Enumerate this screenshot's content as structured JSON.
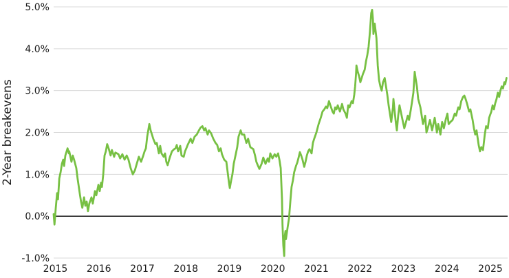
{
  "chart_data": {
    "type": "line",
    "title": "",
    "xlabel": "",
    "ylabel": "2-Year breakevens",
    "ylim": [
      -1.0,
      5.0
    ],
    "xlim": [
      2014.95,
      2025.45
    ],
    "grid": "horizontal",
    "legend": "none",
    "line_color": "#77c043",
    "grid_color": "#d9d9d9",
    "zero_line_color": "#000000",
    "text_color": "#1a1a1a",
    "y_ticks": [
      {
        "value": 5.0,
        "label": "5.0%"
      },
      {
        "value": 4.0,
        "label": "4.0%"
      },
      {
        "value": 3.0,
        "label": "3.0%"
      },
      {
        "value": 2.0,
        "label": "2.0%"
      },
      {
        "value": 1.0,
        "label": "1.0%"
      },
      {
        "value": 0.0,
        "label": "0.0%"
      },
      {
        "value": -1.0,
        "label": "-1.0%"
      }
    ],
    "y_gridline_values": [
      5.0,
      4.0,
      3.0,
      2.0,
      1.0,
      -1.0
    ],
    "zero_line_value": 0.0,
    "x_ticks": [
      {
        "value": 2015,
        "label": "2015"
      },
      {
        "value": 2016,
        "label": "2016"
      },
      {
        "value": 2017,
        "label": "2017"
      },
      {
        "value": 2018,
        "label": "2018"
      },
      {
        "value": 2019,
        "label": "2019"
      },
      {
        "value": 2020,
        "label": "2020"
      },
      {
        "value": 2021,
        "label": "2021"
      },
      {
        "value": 2022,
        "label": "2022"
      },
      {
        "value": 2023,
        "label": "2023"
      },
      {
        "value": 2024,
        "label": "2024"
      },
      {
        "value": 2025,
        "label": "2025"
      }
    ],
    "series": [
      {
        "name": "2-Year breakevens",
        "x": [
          2014.96,
          2014.98,
          2015.01,
          2015.04,
          2015.06,
          2015.09,
          2015.12,
          2015.15,
          2015.18,
          2015.2,
          2015.23,
          2015.28,
          2015.31,
          2015.32,
          2015.37,
          2015.4,
          2015.43,
          2015.48,
          2015.51,
          2015.56,
          2015.59,
          2015.62,
          2015.66,
          2015.69,
          2015.72,
          2015.75,
          2015.78,
          2015.83,
          2015.86,
          2015.91,
          2015.94,
          2015.99,
          2016.02,
          2016.05,
          2016.07,
          2016.1,
          2016.13,
          2016.16,
          2016.19,
          2016.23,
          2016.27,
          2016.3,
          2016.35,
          2016.38,
          2016.45,
          2016.49,
          2016.54,
          2016.59,
          2016.64,
          2016.68,
          2016.73,
          2016.78,
          2016.83,
          2016.87,
          2016.92,
          2016.97,
          2017.02,
          2017.05,
          2017.08,
          2017.11,
          2017.16,
          2017.19,
          2017.22,
          2017.25,
          2017.3,
          2017.33,
          2017.38,
          2017.41,
          2017.44,
          2017.49,
          2017.52,
          2017.55,
          2017.58,
          2017.63,
          2017.68,
          2017.73,
          2017.76,
          2017.79,
          2017.82,
          2017.87,
          2017.9,
          2017.95,
          2017.98,
          2018.01,
          2018.04,
          2018.11,
          2018.15,
          2018.2,
          2018.25,
          2018.3,
          2018.34,
          2018.38,
          2018.42,
          2018.45,
          2018.5,
          2018.53,
          2018.58,
          2018.63,
          2018.68,
          2018.72,
          2018.76,
          2018.8,
          2018.83,
          2018.88,
          2018.93,
          2018.96,
          2018.99,
          2019.01,
          2019.04,
          2019.07,
          2019.1,
          2019.15,
          2019.18,
          2019.21,
          2019.26,
          2019.29,
          2019.34,
          2019.39,
          2019.43,
          2019.48,
          2019.55,
          2019.59,
          2019.62,
          2019.66,
          2019.69,
          2019.74,
          2019.78,
          2019.83,
          2019.88,
          2019.91,
          2019.94,
          2019.99,
          2020.04,
          2020.08,
          2020.12,
          2020.15,
          2020.18,
          2020.21,
          2020.22,
          2020.24,
          2020.26,
          2020.27,
          2020.29,
          2020.3,
          2020.34,
          2020.37,
          2020.4,
          2020.43,
          2020.46,
          2020.49,
          2020.53,
          2020.56,
          2020.59,
          2020.62,
          2020.65,
          2020.68,
          2020.72,
          2020.75,
          2020.78,
          2020.81,
          2020.84,
          2020.89,
          2020.92,
          2020.95,
          2021.0,
          2021.05,
          2021.1,
          2021.14,
          2021.18,
          2021.22,
          2021.25,
          2021.29,
          2021.33,
          2021.37,
          2021.4,
          2021.43,
          2021.46,
          2021.49,
          2021.54,
          2021.59,
          2021.62,
          2021.67,
          2021.7,
          2021.73,
          2021.76,
          2021.81,
          2021.84,
          2021.87,
          2021.89,
          2021.91,
          2021.92,
          2021.95,
          2021.98,
          2022.01,
          2022.04,
          2022.07,
          2022.11,
          2022.14,
          2022.17,
          2022.2,
          2022.23,
          2022.26,
          2022.28,
          2022.3,
          2022.31,
          2022.34,
          2022.38,
          2022.41,
          2022.44,
          2022.47,
          2022.5,
          2022.53,
          2022.57,
          2022.6,
          2022.63,
          2022.66,
          2022.69,
          2022.72,
          2022.76,
          2022.77,
          2022.8,
          2022.83,
          2022.85,
          2022.88,
          2022.91,
          2022.94,
          2022.98,
          2023.02,
          2023.06,
          2023.1,
          2023.13,
          2023.17,
          2023.2,
          2023.23,
          2023.26,
          2023.28,
          2023.31,
          2023.34,
          2023.39,
          2023.42,
          2023.45,
          2023.5,
          2023.53,
          2023.56,
          2023.61,
          2023.66,
          2023.69,
          2023.72,
          2023.77,
          2023.8,
          2023.85,
          2023.89,
          2023.93,
          2023.97,
          2024.01,
          2024.04,
          2024.08,
          2024.13,
          2024.18,
          2024.21,
          2024.26,
          2024.29,
          2024.33,
          2024.37,
          2024.4,
          2024.43,
          2024.46,
          2024.51,
          2024.54,
          2024.59,
          2024.62,
          2024.65,
          2024.68,
          2024.73,
          2024.76,
          2024.79,
          2024.83,
          2024.87,
          2024.9,
          2024.94,
          2024.97,
          2025.02,
          2025.05,
          2025.08,
          2025.11,
          2025.14,
          2025.17,
          2025.2,
          2025.23,
          2025.26,
          2025.29,
          2025.32,
          2025.34,
          2025.37
        ],
        "y": [
          0.05,
          -0.2,
          0.2,
          0.55,
          0.4,
          0.9,
          1.05,
          1.25,
          1.35,
          1.2,
          1.45,
          1.62,
          1.5,
          1.55,
          1.3,
          1.45,
          1.35,
          1.15,
          0.9,
          0.55,
          0.35,
          0.2,
          0.45,
          0.25,
          0.35,
          0.12,
          0.3,
          0.45,
          0.3,
          0.6,
          0.5,
          0.75,
          0.6,
          0.8,
          0.7,
          1.0,
          1.45,
          1.55,
          1.72,
          1.6,
          1.45,
          1.58,
          1.42,
          1.52,
          1.48,
          1.38,
          1.48,
          1.35,
          1.45,
          1.35,
          1.15,
          1.0,
          1.1,
          1.25,
          1.42,
          1.3,
          1.45,
          1.55,
          1.62,
          1.9,
          2.2,
          2.05,
          1.95,
          1.85,
          1.72,
          1.75,
          1.5,
          1.68,
          1.5,
          1.42,
          1.5,
          1.3,
          1.22,
          1.4,
          1.55,
          1.6,
          1.62,
          1.7,
          1.55,
          1.68,
          1.45,
          1.42,
          1.55,
          1.62,
          1.7,
          1.85,
          1.75,
          1.9,
          1.95,
          2.05,
          2.12,
          2.15,
          2.05,
          2.1,
          1.95,
          2.05,
          1.98,
          1.85,
          1.75,
          1.7,
          1.55,
          1.62,
          1.48,
          1.35,
          1.3,
          1.05,
          0.8,
          0.67,
          0.85,
          1.0,
          1.25,
          1.5,
          1.65,
          1.9,
          2.05,
          1.95,
          1.95,
          1.75,
          1.85,
          1.65,
          1.6,
          1.45,
          1.3,
          1.2,
          1.13,
          1.25,
          1.4,
          1.25,
          1.38,
          1.3,
          1.5,
          1.38,
          1.48,
          1.42,
          1.5,
          1.35,
          1.15,
          0.4,
          -0.2,
          -0.7,
          -0.95,
          -0.5,
          -0.35,
          -0.55,
          -0.25,
          -0.05,
          0.35,
          0.7,
          0.85,
          1.05,
          1.2,
          1.28,
          1.4,
          1.53,
          1.45,
          1.35,
          1.18,
          1.3,
          1.45,
          1.55,
          1.6,
          1.5,
          1.75,
          1.85,
          2.0,
          2.2,
          2.35,
          2.5,
          2.55,
          2.62,
          2.58,
          2.75,
          2.62,
          2.5,
          2.45,
          2.6,
          2.55,
          2.65,
          2.5,
          2.68,
          2.55,
          2.45,
          2.35,
          2.65,
          2.6,
          2.75,
          2.7,
          2.9,
          3.1,
          3.4,
          3.6,
          3.45,
          3.35,
          3.2,
          3.3,
          3.4,
          3.5,
          3.7,
          3.85,
          4.05,
          4.4,
          4.85,
          4.93,
          4.7,
          4.35,
          4.6,
          4.25,
          3.6,
          3.25,
          3.1,
          3.0,
          3.2,
          3.3,
          3.1,
          2.9,
          2.65,
          2.45,
          2.25,
          2.6,
          2.8,
          2.5,
          2.2,
          2.05,
          2.4,
          2.65,
          2.5,
          2.3,
          2.1,
          2.25,
          2.4,
          2.3,
          2.55,
          2.75,
          2.95,
          3.45,
          3.3,
          3.1,
          2.8,
          2.6,
          2.4,
          2.2,
          2.4,
          2.0,
          2.1,
          2.3,
          2.05,
          2.2,
          2.35,
          2.0,
          2.2,
          1.95,
          2.25,
          2.1,
          2.3,
          2.45,
          2.2,
          2.25,
          2.3,
          2.45,
          2.4,
          2.6,
          2.55,
          2.75,
          2.85,
          2.88,
          2.8,
          2.7,
          2.5,
          2.55,
          2.3,
          2.1,
          1.95,
          2.05,
          1.7,
          1.55,
          1.65,
          1.58,
          1.95,
          2.15,
          2.1,
          2.35,
          2.5,
          2.65,
          2.55,
          2.7,
          2.8,
          2.95,
          2.85,
          3.0,
          3.1,
          3.05,
          3.2,
          3.15,
          3.3
        ]
      }
    ]
  }
}
